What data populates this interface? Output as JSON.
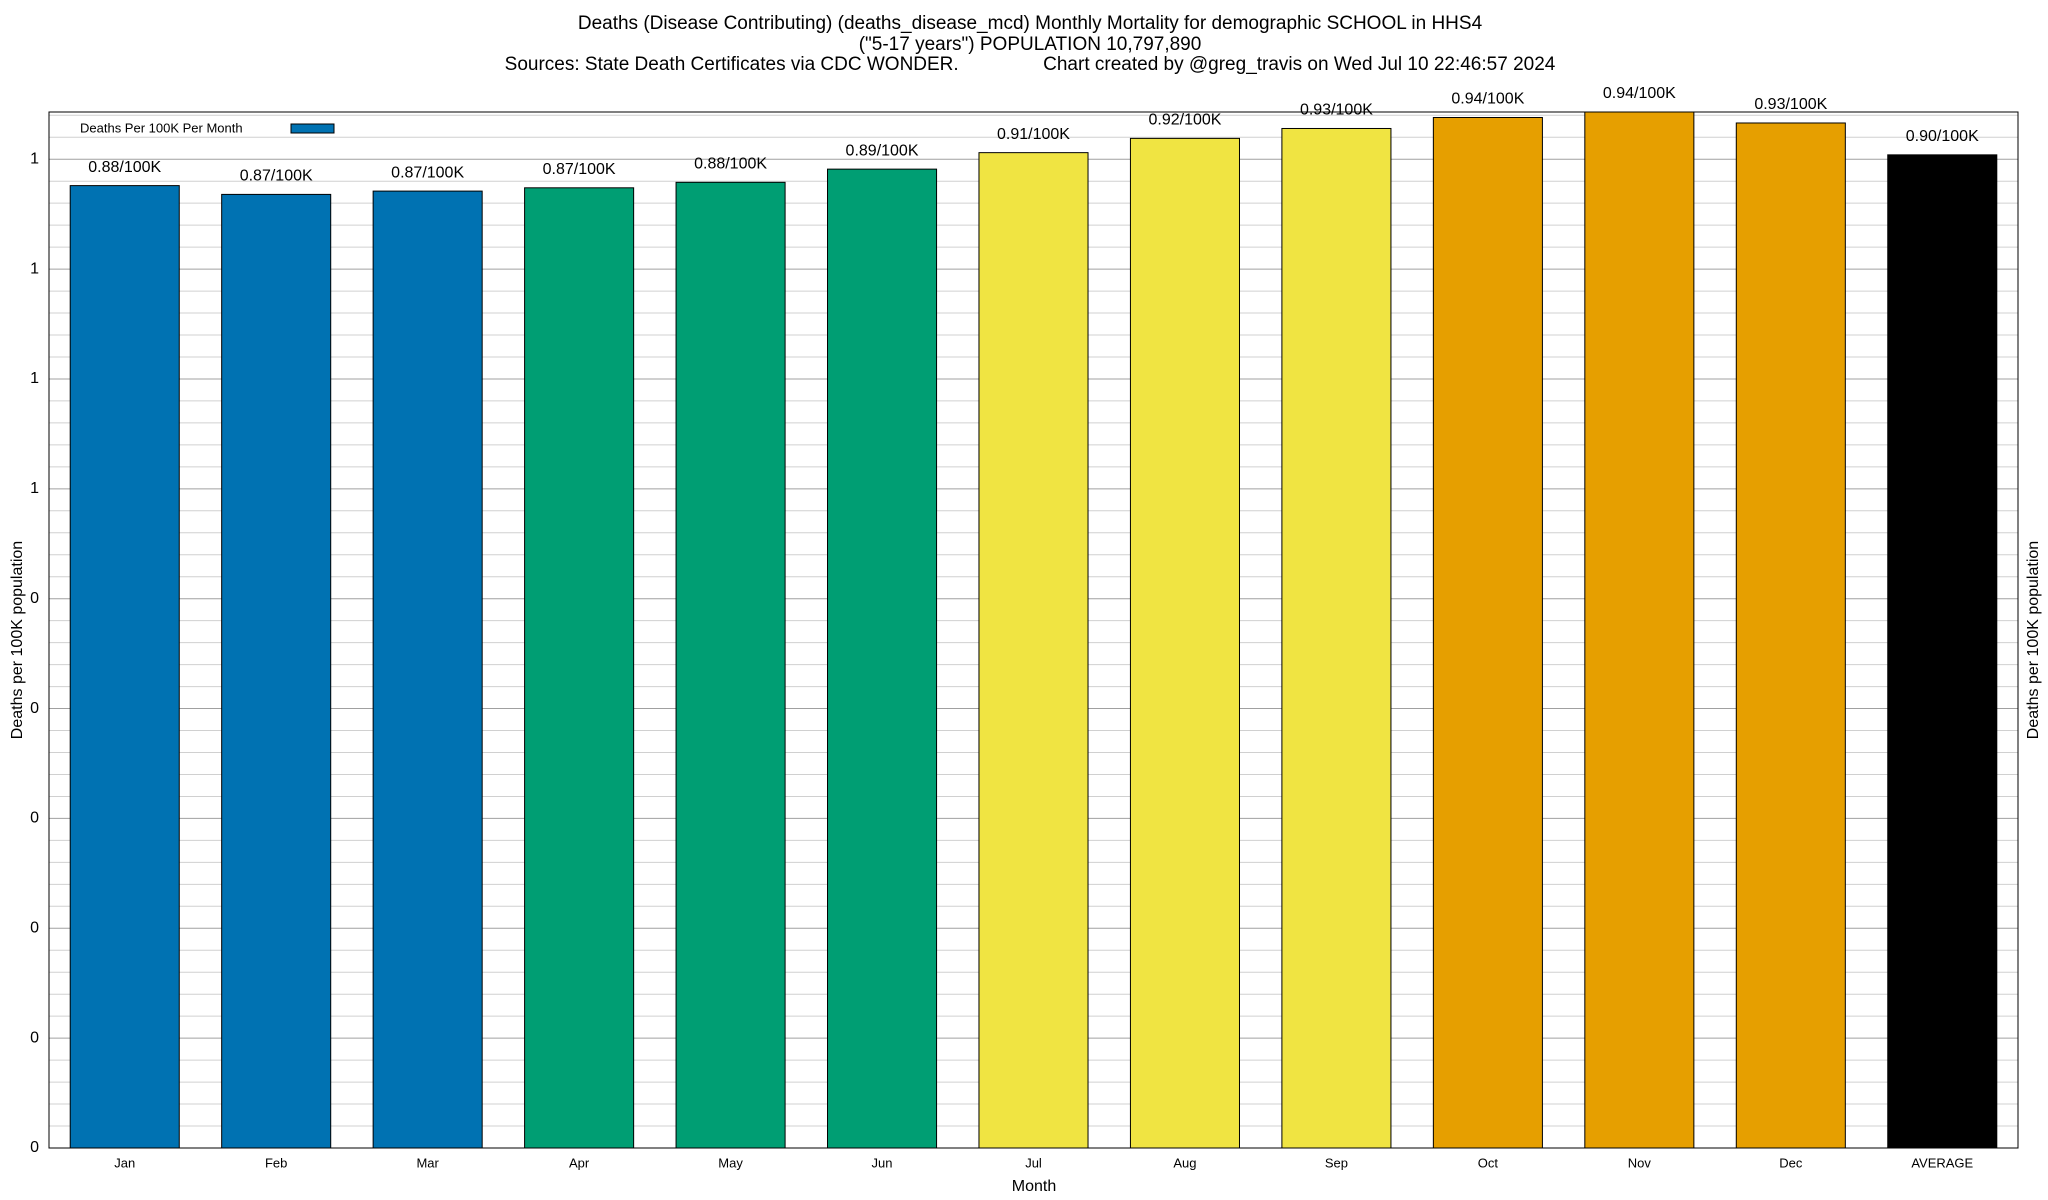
{
  "chart_data": {
    "type": "bar",
    "title_lines": [
      "Deaths (Disease Contributing) (deaths_disease_mcd) Monthly Mortality for demographic SCHOOL in HHS4",
      "(\"5-17 years\") POPULATION 10,797,890",
      "Sources: State Death Certificates via CDC WONDER.                Chart created by @greg_travis on Wed Jul 10 22:46:57 2024"
    ],
    "x_label": "Month",
    "y_label": "Deaths per 100K population",
    "y2_label": "Deaths per 100K population",
    "categories": [
      "Jan",
      "Feb",
      "Mar",
      "Apr",
      "May",
      "Jun",
      "Jul",
      "Aug",
      "Sep",
      "Oct",
      "Nov",
      "Dec",
      "AVERAGE"
    ],
    "series": [
      {
        "name": "Deaths Per 100K Per Month",
        "color": "#0072b2",
        "values": [
          0.876,
          0.868,
          0.871,
          0.874,
          0.879,
          0.891,
          0.906,
          0.919,
          0.928,
          0.938,
          0.943,
          0.933,
          0.904
        ],
        "value_labels": [
          "0.88/100K",
          "0.87/100K",
          "0.87/100K",
          "0.87/100K",
          "0.88/100K",
          "0.89/100K",
          "0.91/100K",
          "0.92/100K",
          "0.93/100K",
          "0.94/100K",
          "0.94/100K",
          "0.93/100K",
          "0.90/100K"
        ],
        "colors": [
          "#0072b2",
          "#0072b2",
          "#0072b2",
          "#009e73",
          "#009e73",
          "#009e73",
          "#f0e442",
          "#f0e442",
          "#f0e442",
          "#e69f00",
          "#e69f00",
          "#e69f00",
          "#000000"
        ]
      }
    ],
    "ylim": [
      0,
      0.943
    ],
    "yticks": [
      0,
      {
        "value": 0.1,
        "label": "0"
      },
      {
        "value": 0.2,
        "label": "0"
      },
      {
        "value": 0.3,
        "label": "0"
      },
      {
        "value": 0.4,
        "label": "0"
      },
      {
        "value": 0.5,
        "label": "0"
      },
      {
        "value": 0.6,
        "label": "1"
      },
      {
        "value": 0.7,
        "label": "1"
      },
      {
        "value": 0.8,
        "label": "1"
      },
      {
        "value": 0.9,
        "label": "1"
      }
    ],
    "minor_yticks": [
      0.02,
      0.04,
      0.06,
      0.08,
      0.12,
      0.14,
      0.16,
      0.18,
      0.22,
      0.24,
      0.26,
      0.28,
      0.32,
      0.34,
      0.36,
      0.38,
      0.42,
      0.44,
      0.46,
      0.48,
      0.52,
      0.54,
      0.56,
      0.58,
      0.62,
      0.64,
      0.66,
      0.68,
      0.72,
      0.74,
      0.76,
      0.78,
      0.82,
      0.84,
      0.86,
      0.88,
      0.92,
      0.94
    ],
    "grid": true,
    "legend": "top-left"
  }
}
